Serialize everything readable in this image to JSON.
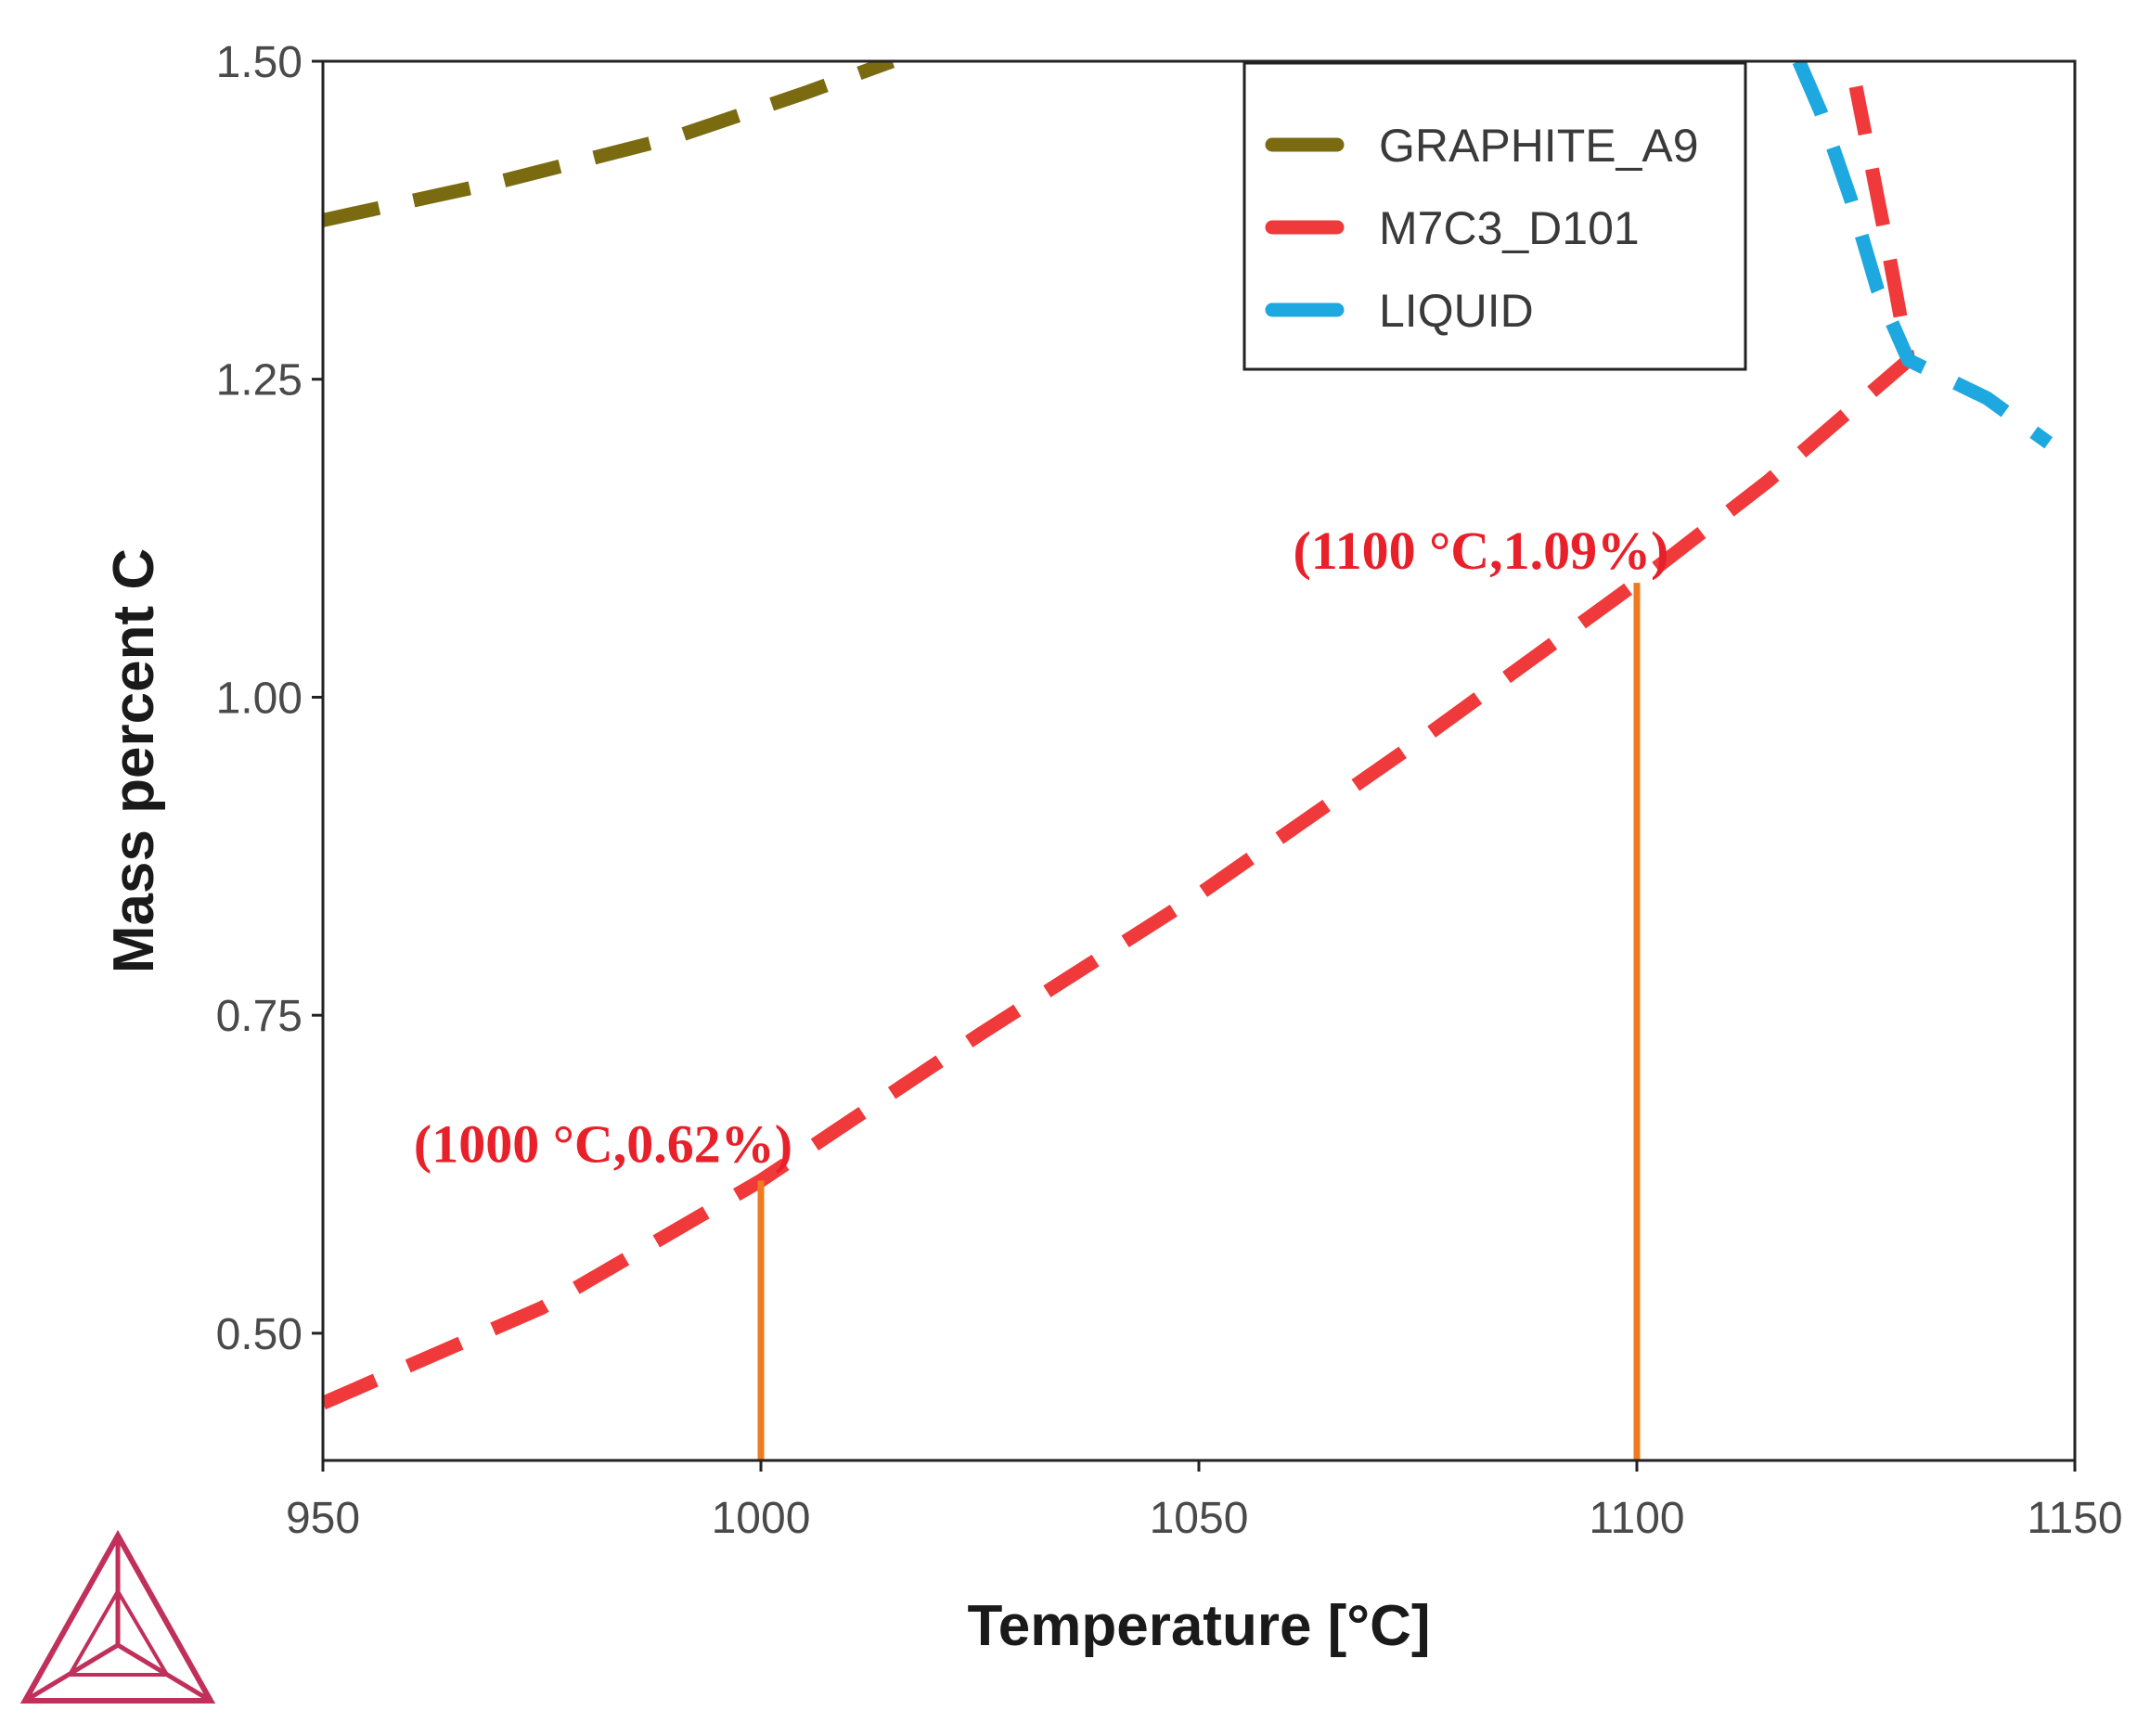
{
  "chart_data": {
    "type": "line",
    "title": "",
    "xlabel": "Temperature [°C]",
    "ylabel": "Mass percent C",
    "xlim": [
      950,
      1150
    ],
    "ylim": [
      0.4,
      1.5
    ],
    "xticks": [
      950,
      1000,
      1050,
      1100,
      1150
    ],
    "xtick_labels": [
      "950",
      "1000",
      "1050",
      "1100",
      "1150"
    ],
    "yticks": [
      0.5,
      0.75,
      1.0,
      1.25,
      1.5
    ],
    "ytick_labels": [
      "0.50",
      "0.75",
      "1.00",
      "1.25",
      "1.50"
    ],
    "grid": false,
    "legend_position": "top-right",
    "series": [
      {
        "name": "GRAPHITE_A9",
        "color": "#7a6a10",
        "style": "dashed",
        "x": [
          950,
          970,
          990,
          1005,
          1015
        ],
        "y": [
          1.375,
          1.405,
          1.44,
          1.475,
          1.5
        ]
      },
      {
        "name": "M7C3_D101",
        "color": "#f0393a",
        "style": "dashed",
        "x": [
          950,
          975,
          1000,
          1025,
          1050,
          1075,
          1100,
          1115,
          1131,
          1129,
          1127,
          1125
        ],
        "y": [
          0.445,
          0.52,
          0.62,
          0.735,
          0.845,
          0.965,
          1.09,
          1.17,
          1.265,
          1.34,
          1.41,
          1.48
        ]
      },
      {
        "name": "LIQUID",
        "color": "#1ea8e0",
        "style": "dashed",
        "x": [
          1118.5,
          1121,
          1124.5,
          1127.5,
          1131,
          1140,
          1147
        ],
        "y": [
          1.5,
          1.46,
          1.39,
          1.32,
          1.265,
          1.235,
          1.2
        ]
      }
    ],
    "markers": [
      {
        "x": 1000,
        "y": 0.62,
        "color": "#f07a1e"
      },
      {
        "x": 1100,
        "y": 1.09,
        "color": "#f07a1e"
      }
    ],
    "annotations": [
      {
        "text": "(1000 °C,0.62%)",
        "x": 1000,
        "y": 0.62
      },
      {
        "text": "(1100 °C,1.09%)",
        "x": 1100,
        "y": 1.09
      }
    ],
    "logo": {
      "name": "thermo-calc-logo-icon",
      "color": "#c0305a"
    }
  }
}
